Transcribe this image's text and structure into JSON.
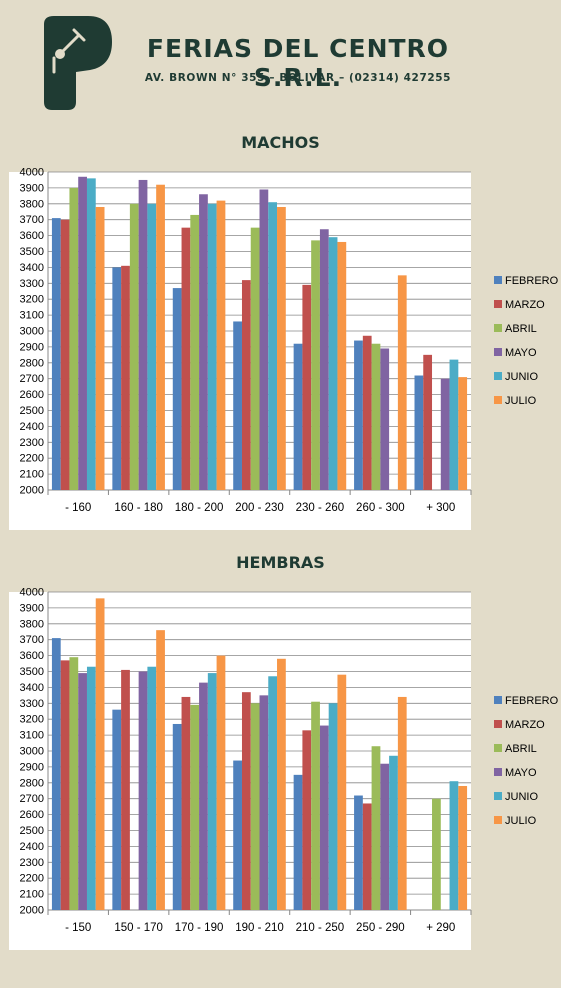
{
  "header": {
    "company": "FERIAS DEL CENTRO S.R.L.",
    "address": "AV. BROWN N° 355 – BOLIVAR – (02314) 427255",
    "logo_icon": "gavel-hand-icon",
    "logo_color": "#1f3b33"
  },
  "colors": {
    "background": "#e2dcc9",
    "text": "#1f3b33",
    "series": [
      "#4f81bd",
      "#c0504d",
      "#9bbb59",
      "#8064a2",
      "#4bacc6",
      "#f79646"
    ]
  },
  "chart_data": [
    {
      "type": "bar",
      "title": "MACHOS",
      "categories": [
        "- 160",
        "160 - 180",
        "180 - 200",
        "200 - 230",
        "230 - 260",
        "260 - 300",
        "+ 300"
      ],
      "ylim": [
        2000,
        4000
      ],
      "ytick_step": 100,
      "grid": true,
      "legend_position": "right",
      "series": [
        {
          "name": "FEBRERO",
          "values": [
            3710,
            3400,
            3270,
            3060,
            2920,
            2940,
            2720
          ]
        },
        {
          "name": "MARZO",
          "values": [
            3700,
            3410,
            3650,
            3320,
            3290,
            2970,
            2850
          ]
        },
        {
          "name": "ABRIL",
          "values": [
            3900,
            3800,
            3730,
            3650,
            3570,
            2920,
            null
          ]
        },
        {
          "name": "MAYO",
          "values": [
            3970,
            3950,
            3860,
            3890,
            3640,
            2890,
            2700
          ]
        },
        {
          "name": "JUNIO",
          "values": [
            3960,
            3800,
            3800,
            3810,
            3590,
            null,
            2820
          ]
        },
        {
          "name": "JULIO",
          "values": [
            3780,
            3920,
            3820,
            3780,
            3560,
            3350,
            2710
          ]
        }
      ]
    },
    {
      "type": "bar",
      "title": "HEMBRAS",
      "categories": [
        "- 150",
        "150 - 170",
        "170 - 190",
        "190 - 210",
        "210 - 250",
        "250 - 290",
        "+ 290"
      ],
      "ylim": [
        2000,
        4000
      ],
      "ytick_step": 100,
      "grid": true,
      "legend_position": "right",
      "series": [
        {
          "name": "FEBRERO",
          "values": [
            3710,
            3260,
            3170,
            2940,
            2850,
            2720,
            null
          ]
        },
        {
          "name": "MARZO",
          "values": [
            3570,
            3510,
            3340,
            3370,
            3130,
            2670,
            null
          ]
        },
        {
          "name": "ABRIL",
          "values": [
            3590,
            null,
            3290,
            3300,
            3310,
            3030,
            2700
          ]
        },
        {
          "name": "MAYO",
          "values": [
            3490,
            3500,
            3430,
            3350,
            3160,
            2920,
            null
          ]
        },
        {
          "name": "JUNIO",
          "values": [
            3530,
            3530,
            3490,
            3470,
            3300,
            2970,
            2810
          ]
        },
        {
          "name": "JULIO",
          "values": [
            3960,
            3760,
            3600,
            3580,
            3480,
            3340,
            2780
          ]
        }
      ]
    }
  ]
}
